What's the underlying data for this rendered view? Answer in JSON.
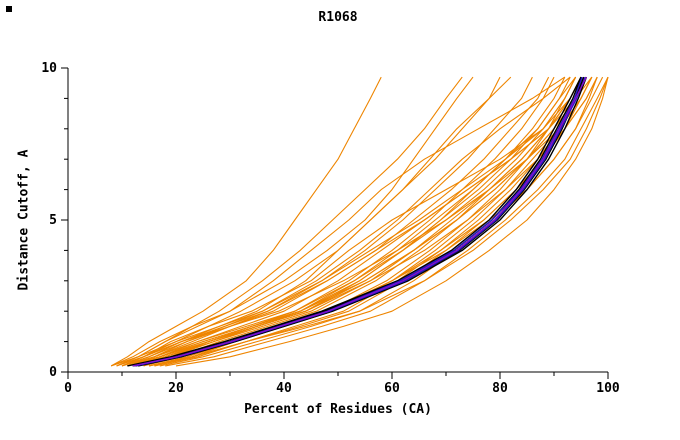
{
  "window": {
    "background": "#ffffff"
  },
  "chart_data": {
    "type": "line",
    "title": "R1068",
    "xlabel": "Percent of Residues (CA)",
    "ylabel": "Distance Cutoff, A",
    "xlim": [
      0,
      100
    ],
    "ylim": [
      0,
      10
    ],
    "x_ticks_major": [
      0,
      20,
      40,
      60,
      80,
      100
    ],
    "x_tick_labels": [
      "0",
      "20",
      "40",
      "60",
      "80",
      "100"
    ],
    "x_minor_step": 10,
    "y_ticks_major": [
      0,
      5,
      10
    ],
    "y_tick_labels": [
      "0",
      "5",
      "10"
    ],
    "y_minor_step": 1,
    "grid": false,
    "legend": "none",
    "colors": {
      "orange": "#ee8500",
      "black": "#000000",
      "blue": "#2414c8",
      "purple": "#8810c8"
    },
    "y_levels": [
      0.2,
      0.5,
      1,
      1.5,
      2,
      3,
      4,
      5,
      6,
      7,
      8,
      9,
      9.7
    ],
    "groups": [
      {
        "name": "predictions-orange",
        "color_key": "orange",
        "width": 1.1,
        "series": [
          {
            "x": [
              8,
              11,
              15,
              20,
              25,
              33,
              38,
              42,
              46,
              50,
              53,
              56,
              58
            ]
          },
          {
            "x": [
              9,
              13,
              18,
              23,
              28,
              36,
              43,
              49,
              55,
              61,
              66,
              70,
              73
            ]
          },
          {
            "x": [
              10,
              14,
              20,
              26,
              32,
              42,
              50,
              56,
              62,
              68,
              73,
              78,
              80
            ]
          },
          {
            "x": [
              11,
              16,
              23,
              30,
              37,
              47,
              55,
              62,
              68,
              74,
              79,
              84,
              86
            ]
          },
          {
            "x": [
              12,
              18,
              26,
              34,
              42,
              52,
              60,
              67,
              73,
              79,
              84,
              88,
              90
            ]
          },
          {
            "x": [
              10,
              15,
              22,
              30,
              38,
              48,
              57,
              64,
              71,
              77,
              82,
              87,
              89
            ]
          },
          {
            "x": [
              13,
              19,
              27,
              35,
              43,
              54,
              62,
              69,
              75,
              81,
              86,
              90,
              92
            ]
          },
          {
            "x": [
              15,
              22,
              31,
              40,
              48,
              59,
              67,
              74,
              80,
              85,
              89,
              92,
              94
            ]
          },
          {
            "x": [
              12,
              18,
              27,
              36,
              45,
              56,
              64,
              71,
              78,
              84,
              89,
              93,
              95
            ]
          },
          {
            "x": [
              16,
              24,
              33,
              42,
              51,
              61,
              69,
              76,
              82,
              87,
              91,
              94,
              96
            ]
          },
          {
            "x": [
              11,
              17,
              25,
              34,
              43,
              55,
              64,
              72,
              79,
              85,
              90,
              94,
              96
            ]
          },
          {
            "x": [
              14,
              21,
              30,
              40,
              49,
              60,
              69,
              77,
              83,
              88,
              92,
              95,
              97
            ]
          },
          {
            "x": [
              17,
              25,
              35,
              45,
              54,
              64,
              72,
              79,
              85,
              90,
              94,
              96.5,
              98
            ]
          },
          {
            "x": [
              13,
              20,
              29,
              39,
              48,
              60,
              70,
              78,
              85,
              90,
              94,
              97,
              99
            ]
          },
          {
            "x": [
              18,
              27,
              37,
              47,
              56,
              66,
              74,
              81,
              87,
              92,
              95,
              98,
              100
            ]
          },
          {
            "x": [
              20,
              30,
              41,
              51,
              60,
              70,
              78,
              85,
              90,
              94,
              97,
              99,
              100
            ]
          },
          {
            "x": [
              15,
              23,
              33,
              44,
              54,
              66,
              75,
              82,
              88,
              93,
              96,
              98.5,
              100
            ]
          },
          {
            "x": [
              9,
              14,
              21,
              29,
              37,
              48,
              57,
              66,
              74,
              82,
              89,
              94,
              97
            ]
          },
          {
            "x": [
              11,
              17,
              26,
              35,
              44,
              56,
              66,
              74,
              81,
              87,
              92,
              96,
              98
            ]
          },
          {
            "x": [
              8,
              13,
              20,
              28,
              36,
              47,
              56,
              65,
              73,
              81,
              88,
              93,
              95
            ]
          },
          {
            "x": [
              10,
              14,
              19,
              26,
              34,
              45,
              52,
              60,
              70,
              80,
              88,
              92,
              94
            ]
          },
          {
            "x": [
              12,
              17,
              24,
              32,
              40,
              50,
              58,
              66,
              74,
              82,
              89,
              93,
              95
            ]
          },
          {
            "x": [
              9,
              14,
              21,
              30,
              39,
              51,
              61,
              70,
              78,
              85,
              91,
              95,
              97
            ]
          },
          {
            "x": [
              13,
              19,
              26,
              35,
              44,
              55,
              64,
              72,
              79,
              85,
              90,
              94,
              96
            ]
          },
          {
            "x": [
              16,
              23,
              31,
              40,
              49,
              60,
              68,
              75,
              81,
              86,
              91,
              95,
              97
            ]
          },
          {
            "x": [
              10,
              16,
              24,
              33,
              42,
              53,
              62,
              70,
              77,
              83,
              88,
              92,
              94
            ]
          },
          {
            "x": [
              14,
              20,
              28,
              37,
              46,
              57,
              65,
              72,
              78,
              84,
              89,
              93,
              95
            ]
          },
          {
            "x": [
              12,
              18,
              26,
              35,
              44,
              54,
              62,
              69,
              76,
              82,
              87,
              91,
              93
            ]
          },
          {
            "x": [
              15,
              23,
              33,
              43,
              52,
              62,
              70,
              77,
              83,
              88,
              92,
              96,
              98
            ]
          },
          {
            "x": [
              11,
              17,
              25,
              34,
              43,
              53,
              61,
              68,
              75,
              81,
              87,
              91,
              94
            ]
          },
          {
            "x": [
              8,
              12,
              17,
              23,
              30,
              40,
              48,
              55,
              60,
              64,
              68,
              72,
              75
            ]
          },
          {
            "x": [
              10,
              15,
              21,
              28,
              35,
              44,
              50,
              56,
              62,
              67,
              72,
              78,
              82
            ]
          },
          {
            "x": [
              9,
              13,
              18,
              24,
              30,
              38,
              45,
              52,
              58,
              66,
              76,
              86,
              92
            ]
          },
          {
            "x": [
              11,
              16,
              22,
              29,
              36,
              46,
              54,
              61,
              67,
              73,
              80,
              88,
              93
            ]
          }
        ]
      },
      {
        "name": "cluster-black",
        "color_key": "black",
        "width": 1.4,
        "series": [
          {
            "x": [
              12,
              20,
              30,
              39,
              48,
              62,
              72,
              79,
              84,
              88,
              91,
              94,
              95.5
            ]
          },
          {
            "x": [
              11,
              19,
              29,
              38,
              47,
              61,
              71,
              78,
              83,
              87,
              90,
              93,
              95
            ]
          },
          {
            "x": [
              13,
              21,
              31,
              40,
              49,
              63,
              73,
              80,
              85,
              89,
              92,
              94.5,
              96
            ]
          },
          {
            "x": [
              12,
              20,
              30,
              38.5,
              47.5,
              61.5,
              71.5,
              78.5,
              83.5,
              87.5,
              90.5,
              93.5,
              95
            ]
          },
          {
            "x": [
              12.5,
              20.5,
              30.5,
              39.5,
              48.5,
              62.5,
              72.5,
              79.5,
              84.5,
              88.5,
              91.5,
              94,
              95.5
            ]
          }
        ]
      },
      {
        "name": "highlight-blue",
        "color_key": "blue",
        "width": 1.3,
        "series": [
          {
            "x": [
              12,
              20,
              30,
              39,
              48,
              61.5,
              71.5,
              78.5,
              83.8,
              87.8,
              90.8,
              93.8,
              95.2
            ]
          },
          {
            "x": [
              12.5,
              20.5,
              30.5,
              39.5,
              48.5,
              62.5,
              72.3,
              79.3,
              84.3,
              88.3,
              91.3,
              94.2,
              95.8
            ]
          }
        ]
      },
      {
        "name": "highlight-purple",
        "color_key": "purple",
        "width": 1.3,
        "series": [
          {
            "x": [
              12,
              20.2,
              30.2,
              39.2,
              48.2,
              62,
              72,
              79,
              84,
              88,
              91,
              94,
              96
            ]
          }
        ]
      }
    ]
  }
}
